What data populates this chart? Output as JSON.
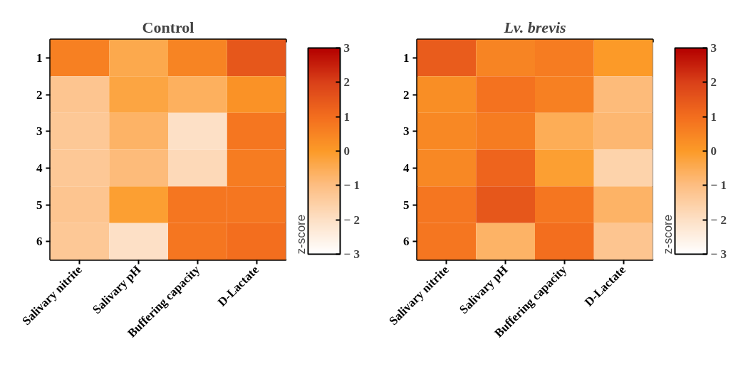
{
  "chart_data": [
    {
      "type": "heatmap",
      "title": "Control",
      "clabel": "z-score",
      "categories": [
        "Salivary nitrite",
        "Salivary pH",
        "Buffering capacity",
        "D-Lactate"
      ],
      "y_categories": [
        "1",
        "2",
        "3",
        "4",
        "5",
        "6"
      ],
      "cells": [
        [
          0.6,
          -0.4,
          0.5,
          1.5
        ],
        [
          -1.2,
          -0.3,
          -0.6,
          0.2
        ],
        [
          -1.3,
          -0.7,
          -2.0,
          0.8
        ],
        [
          -1.3,
          -0.9,
          -1.8,
          0.7
        ],
        [
          -1.2,
          -0.1,
          0.8,
          0.8
        ],
        [
          -1.3,
          -2.0,
          0.8,
          1.0
        ]
      ],
      "clim": [
        -3,
        3
      ],
      "cticks": [
        {
          "value": -3,
          "label": "− 3"
        },
        {
          "value": -2,
          "label": "− 2"
        },
        {
          "value": -1,
          "label": "− 1"
        },
        0,
        1,
        2,
        3
      ]
    },
    {
      "type": "heatmap",
      "title": "Lv. brevis",
      "clabel": "z-score",
      "categories": [
        "Salivary nitrite",
        "Salivary pH",
        "Buffering capacity",
        "D-Lactate"
      ],
      "y_categories": [
        "1",
        "2",
        "3",
        "4",
        "5",
        "6"
      ],
      "cells": [
        [
          1.4,
          0.5,
          0.7,
          0.0
        ],
        [
          0.3,
          0.9,
          0.6,
          -0.9
        ],
        [
          0.4,
          0.7,
          -0.5,
          -0.8
        ],
        [
          0.4,
          1.2,
          -0.1,
          -1.6
        ],
        [
          0.8,
          1.5,
          0.8,
          -0.7
        ],
        [
          0.8,
          -0.7,
          1.0,
          -1.2
        ]
      ],
      "clim": [
        -3,
        3
      ],
      "cticks": [
        {
          "value": -3,
          "label": "− 3"
        },
        {
          "value": -2,
          "label": "− 2"
        },
        {
          "value": -1,
          "label": "− 1"
        },
        0,
        1,
        2,
        3
      ]
    }
  ]
}
